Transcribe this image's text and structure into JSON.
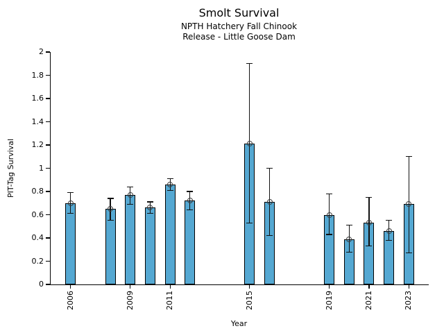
{
  "chart": {
    "title": "Smolt Survival",
    "subtitle1": "NPTH Hatchery Fall Chinook",
    "subtitle2": "Release - Little Goose Dam",
    "xlabel": "Year",
    "ylabel": "PIT-Tag Survival"
  },
  "chart_data": {
    "type": "bar",
    "title": "Smolt Survival",
    "subtitle": [
      "NPTH Hatchery Fall Chinook",
      "Release - Little Goose Dam"
    ],
    "xlabel": "Year",
    "ylabel": "PIT-Tag Survival",
    "xlim": [
      2005,
      2024
    ],
    "ylim": [
      0,
      2
    ],
    "grid": false,
    "legend": "none",
    "yticks": [
      0,
      0.2,
      0.4,
      0.6,
      0.8,
      1,
      1.2,
      1.4,
      1.6,
      1.8,
      2
    ],
    "ytick_labels": [
      "0",
      "0.2",
      "0.4",
      "0.6",
      "0.8",
      "1",
      "1.2",
      "1.4",
      "1.6",
      "1.8",
      "2"
    ],
    "xticks": [
      2006,
      2009,
      2011,
      2015,
      2019,
      2021,
      2023
    ],
    "bar_color": "#55a8d2",
    "bar_edge_color": "#000000",
    "error_color": "#111111",
    "marker": "open-circle",
    "marker_edge_color": "#3d3d3d",
    "points": [
      {
        "year": 2006,
        "value": 0.7,
        "err_lo": 0.61,
        "err_hi": 0.79
      },
      {
        "year": 2008,
        "value": 0.65,
        "err_lo": 0.55,
        "err_hi": 0.74
      },
      {
        "year": 2009,
        "value": 0.77,
        "err_lo": 0.69,
        "err_hi": 0.84
      },
      {
        "year": 2010,
        "value": 0.66,
        "err_lo": 0.61,
        "err_hi": 0.71
      },
      {
        "year": 2011,
        "value": 0.86,
        "err_lo": 0.81,
        "err_hi": 0.91
      },
      {
        "year": 2012,
        "value": 0.72,
        "err_lo": 0.64,
        "err_hi": 0.8
      },
      {
        "year": 2015,
        "value": 1.21,
        "err_lo": 0.53,
        "err_hi": 1.9
      },
      {
        "year": 2016,
        "value": 0.71,
        "err_lo": 0.42,
        "err_hi": 1.0
      },
      {
        "year": 2019,
        "value": 0.6,
        "err_lo": 0.43,
        "err_hi": 0.78
      },
      {
        "year": 2020,
        "value": 0.39,
        "err_lo": 0.28,
        "err_hi": 0.51
      },
      {
        "year": 2021,
        "value": 0.53,
        "err_lo": 0.33,
        "err_hi": 0.75
      },
      {
        "year": 2022,
        "value": 0.46,
        "err_lo": 0.38,
        "err_hi": 0.55
      },
      {
        "year": 2023,
        "value": 0.69,
        "err_lo": 0.27,
        "err_hi": 1.1
      }
    ]
  }
}
